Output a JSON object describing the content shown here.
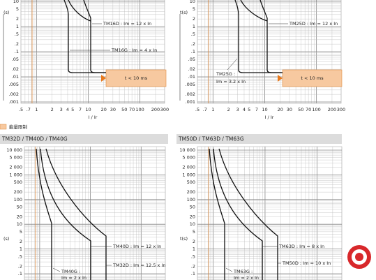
{
  "top_charts": [
    {
      "y_label": "(s)",
      "y_ticks": [
        "10",
        "5",
        "2",
        "1",
        ".5",
        ".2",
        ".1",
        ".05",
        ".02",
        ".01",
        ".005",
        ".002",
        ".001"
      ],
      "x_ticks": [
        ".5",
        ".7",
        "1",
        "2",
        "3",
        "4",
        "5",
        "7",
        "10",
        "20",
        "30",
        "50",
        "70",
        "100",
        "200",
        "300"
      ],
      "x_title": "I / Ir",
      "zone_label": "t < 10 ms",
      "annotations": [
        "TM16D : Im = 12 x In",
        "TM16G : Im = 4 x In"
      ]
    },
    {
      "y_label": "t(s)",
      "y_ticks": [
        "10",
        "5",
        "2",
        "1",
        ".5",
        ".2",
        ".1",
        ".05",
        ".02",
        ".01",
        ".005",
        ".002",
        ".001"
      ],
      "x_ticks": [
        ".5",
        ".7",
        "1",
        "2",
        "3",
        "4",
        "5",
        "7",
        "10",
        "20",
        "30",
        "50",
        "70",
        "100",
        "200",
        "300"
      ],
      "x_title": "I / Ir",
      "zone_label": "t < 10 ms",
      "annotations": [
        "TM25D : Im = 12 x In",
        "TM25G :",
        "Im = 3.2 x In"
      ]
    }
  ],
  "legend": {
    "label": "能量限制"
  },
  "sections": [
    {
      "title": "TM32D / TM40D / TM40G",
      "chart": {
        "y_label": "(s)",
        "y_ticks": [
          "10 000",
          "5 000",
          "2 000",
          "1 000",
          "500",
          "200",
          "100",
          "50",
          "20",
          "10",
          "5",
          "2",
          "1",
          ".5",
          ".2",
          ".1"
        ],
        "annotations": [
          "TM40D : Im = 12 x In",
          "TM32D : Im = 12.5 x In",
          "TM40G :",
          "Im = 2 x In"
        ]
      }
    },
    {
      "title": "TM50D / TM63D / TM63G",
      "chart": {
        "y_label": "t(s)",
        "y_ticks": [
          "10 000",
          "5 000",
          "2 000",
          "1 000",
          "500",
          "200",
          "100",
          "50",
          "20",
          "10",
          "5",
          "2",
          "1",
          ".5",
          ".2",
          ".1"
        ],
        "annotations": [
          "TM63D : Im = 8 x In",
          "TM50D : Im = 10 x In",
          "TM63G :",
          "Im = 2 x In"
        ]
      }
    }
  ]
}
